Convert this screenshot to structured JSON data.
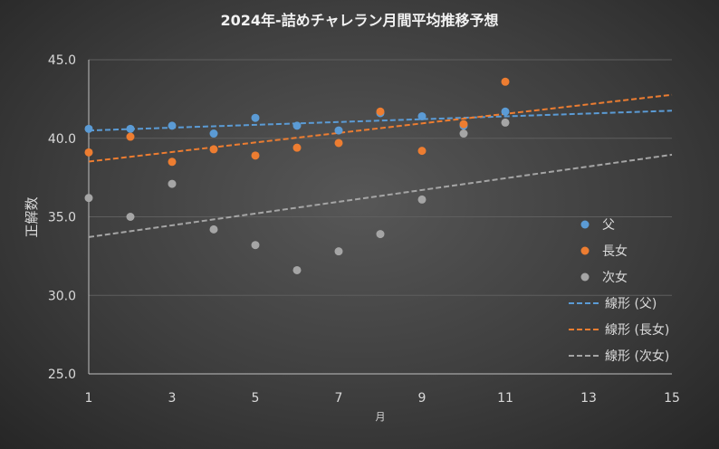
{
  "chart_data": {
    "type": "scatter",
    "title": "2024年-詰めチャレラン月間平均推移予想",
    "xlabel": "月",
    "ylabel": "正解数",
    "xlim": [
      1,
      15
    ],
    "ylim": [
      25,
      45
    ],
    "xticks": [
      "1",
      "3",
      "5",
      "7",
      "9",
      "11",
      "13",
      "15"
    ],
    "yticks": [
      "25.0",
      "30.0",
      "35.0",
      "40.0",
      "45.0"
    ],
    "grid": true,
    "legend_position": "right",
    "x": [
      1,
      2,
      3,
      4,
      5,
      6,
      7,
      8,
      9,
      10,
      11
    ],
    "series": [
      {
        "name": "父",
        "color": "#5b9bd5",
        "values": [
          40.6,
          40.6,
          40.8,
          40.3,
          41.3,
          40.8,
          40.5,
          41.6,
          41.4,
          40.8,
          41.7
        ]
      },
      {
        "name": "長女",
        "color": "#ed7d31",
        "values": [
          39.1,
          40.1,
          38.5,
          39.3,
          38.9,
          39.4,
          39.7,
          41.7,
          39.2,
          40.9,
          43.6
        ]
      },
      {
        "name": "次女",
        "color": "#a5a5a5",
        "values": [
          36.2,
          35.0,
          37.1,
          34.2,
          33.2,
          31.6,
          32.8,
          33.9,
          36.1,
          40.3,
          41.0
        ]
      }
    ],
    "trendlines": [
      {
        "name": "線形 (父)",
        "series": "父",
        "color": "#5b9bd5"
      },
      {
        "name": "線形 (長女)",
        "series": "長女",
        "color": "#ed7d31"
      },
      {
        "name": "線形 (次女)",
        "series": "次女",
        "color": "#a5a5a5"
      }
    ]
  }
}
